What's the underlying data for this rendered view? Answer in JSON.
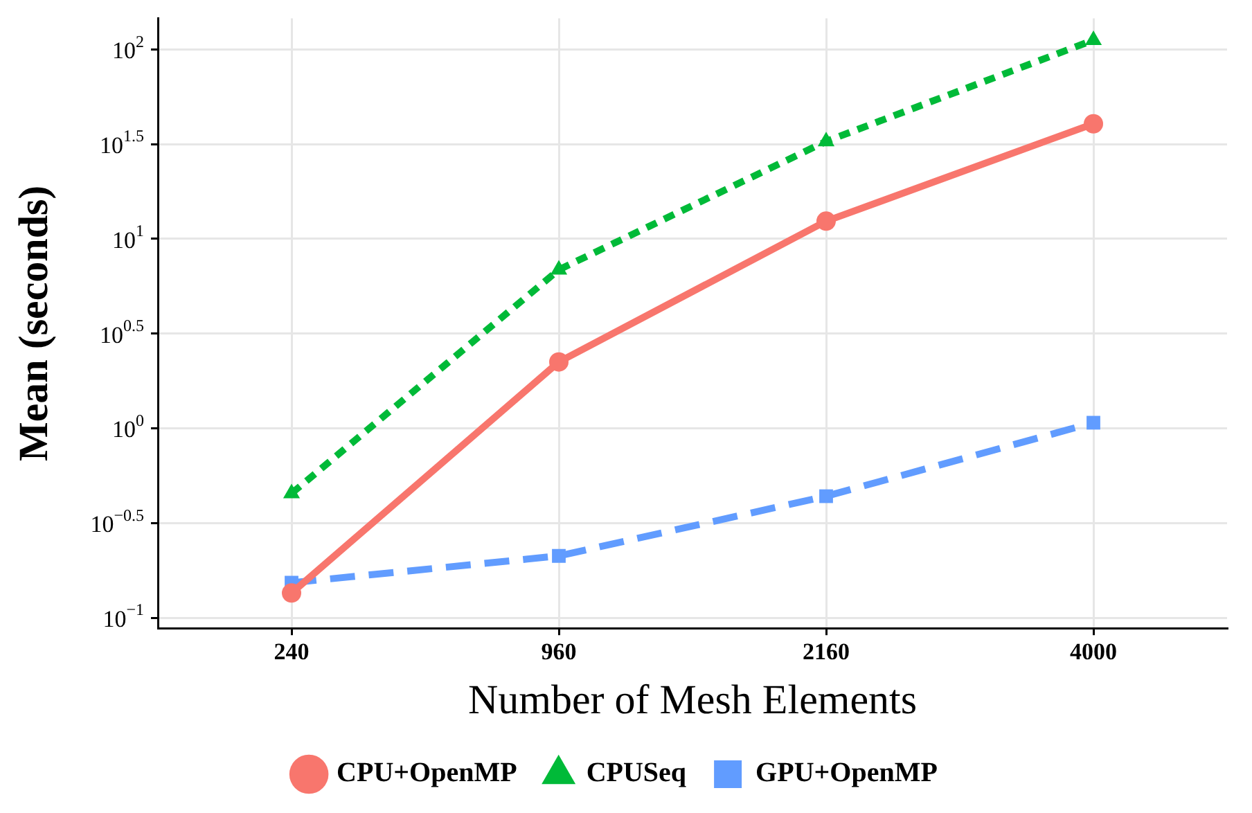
{
  "chart_data": {
    "type": "line",
    "xlabel": "Number of Mesh Elements",
    "ylabel": "Mean (seconds)",
    "categories": [
      "240",
      "960",
      "2160",
      "4000"
    ],
    "series": [
      {
        "name": "CPU+OpenMP",
        "color": "#f8766d",
        "marker": "circle",
        "line_style": "solid",
        "values": [
          0.135,
          2.24,
          12.4,
          40.5
        ]
      },
      {
        "name": "CPUSeq",
        "color": "#00ba38",
        "marker": "triangle",
        "line_style": "dotted",
        "values": [
          0.453,
          6.87,
          32.7,
          112
        ]
      },
      {
        "name": "GPU+OpenMP",
        "color": "#619cff",
        "marker": "square",
        "line_style": "dashed",
        "values": [
          0.153,
          0.212,
          0.438,
          1.07
        ]
      }
    ],
    "log": "y",
    "ylim": [
      0.088,
      146
    ],
    "yticks": [
      {
        "value": 0.1,
        "label": "10$^{−1}$"
      },
      {
        "value": 0.316228,
        "label": "10$^{−0.5}$"
      },
      {
        "value": 1,
        "label": "10$^{0}$"
      },
      {
        "value": 3.16228,
        "label": "10$^{0.5}$"
      },
      {
        "value": 10,
        "label": "10$^{1}$"
      },
      {
        "value": 31.6228,
        "label": "10$^{1.5}$"
      },
      {
        "value": 100,
        "label": "10$^{2}$"
      }
    ],
    "grid": true,
    "legend": "bottom"
  }
}
